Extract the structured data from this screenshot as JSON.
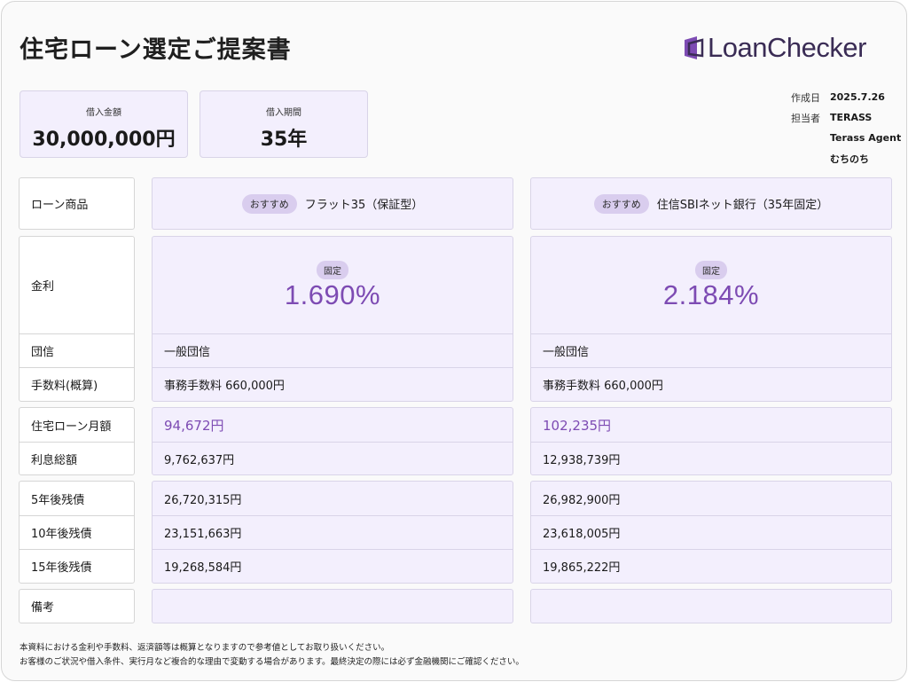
{
  "title": "住宅ローン選定ご提案書",
  "brand": "LoanChecker",
  "colors": {
    "accent": "#7d4bb3",
    "card_bg": "#f3effd",
    "badge_bg": "#d9cdee"
  },
  "summary": {
    "amount_label": "借入金額",
    "amount_value": "30,000,000円",
    "period_label": "借入期間",
    "period_value": "35年"
  },
  "meta": {
    "date_label": "作成日",
    "date_value": "2025.7.26",
    "staff_label": "担当者",
    "staff_company": "TERASS",
    "staff_team": "Terass Agent",
    "staff_name": "むちのち"
  },
  "labels": {
    "product": "ローン商品",
    "rate": "金利",
    "insurance": "団信",
    "fee": "手数料(概算)",
    "monthly": "住宅ローン月額",
    "interest_total": "利息総額",
    "balance_5": "5年後残債",
    "balance_10": "10年後残債",
    "balance_15": "15年後残債",
    "notes": "備考"
  },
  "products": [
    {
      "badge": "おすすめ",
      "name": "フラット35（保証型）",
      "rate_type": "固定",
      "rate": "1.690%",
      "insurance": "一般団信",
      "fee": "事務手数料 660,000円",
      "monthly": "94,672円",
      "interest_total": "9,762,637円",
      "balance_5": "26,720,315円",
      "balance_10": "23,151,663円",
      "balance_15": "19,268,584円",
      "notes": ""
    },
    {
      "badge": "おすすめ",
      "name": "住信SBIネット銀行（35年固定）",
      "rate_type": "固定",
      "rate": "2.184%",
      "insurance": "一般団信",
      "fee": "事務手数料 660,000円",
      "monthly": "102,235円",
      "interest_total": "12,938,739円",
      "balance_5": "26,982,900円",
      "balance_10": "23,618,005円",
      "balance_15": "19,865,222円",
      "notes": ""
    }
  ],
  "footer": {
    "line1": "本資料における金利や手数料、返済額等は概算となりますので参考値としてお取り扱いください。",
    "line2": "お客様のご状況や借入条件、実行月など複合的な理由で変動する場合があります。最終決定の際には必ず金融機関にご確認ください。"
  }
}
